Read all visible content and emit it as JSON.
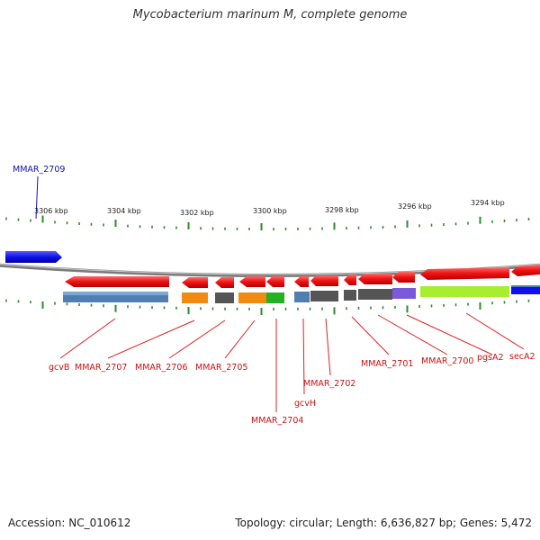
{
  "title": "Mycobacterium marinum M, complete genome",
  "footer": {
    "accession": "Accession: NC_010612",
    "topology": "Topology: circular; Length: 6,636,827 bp; Genes: 5,472"
  },
  "colors": {
    "backbone": "#8a8a8a",
    "tick": "#2e8b2e",
    "forward_gene": "#1010e0",
    "reverse_gene": "#e81818",
    "label_line": "#e02020",
    "label_forward": "#1010c0"
  },
  "ticks": {
    "labels": [
      "3306 kbp",
      "3304 kbp",
      "3302 kbp",
      "3300 kbp",
      "3298 kbp",
      "3296 kbp",
      "3294 kbp"
    ]
  },
  "forward_labels": [
    "MMAR_2709"
  ],
  "gene_labels": [
    "gcvB",
    "MMAR_2707",
    "MMAR_2706",
    "MMAR_2705",
    "MMAR_2704",
    "gcvH",
    "MMAR_2702",
    "MMAR_2701",
    "MMAR_2700",
    "pgsA2",
    "secA2"
  ]
}
